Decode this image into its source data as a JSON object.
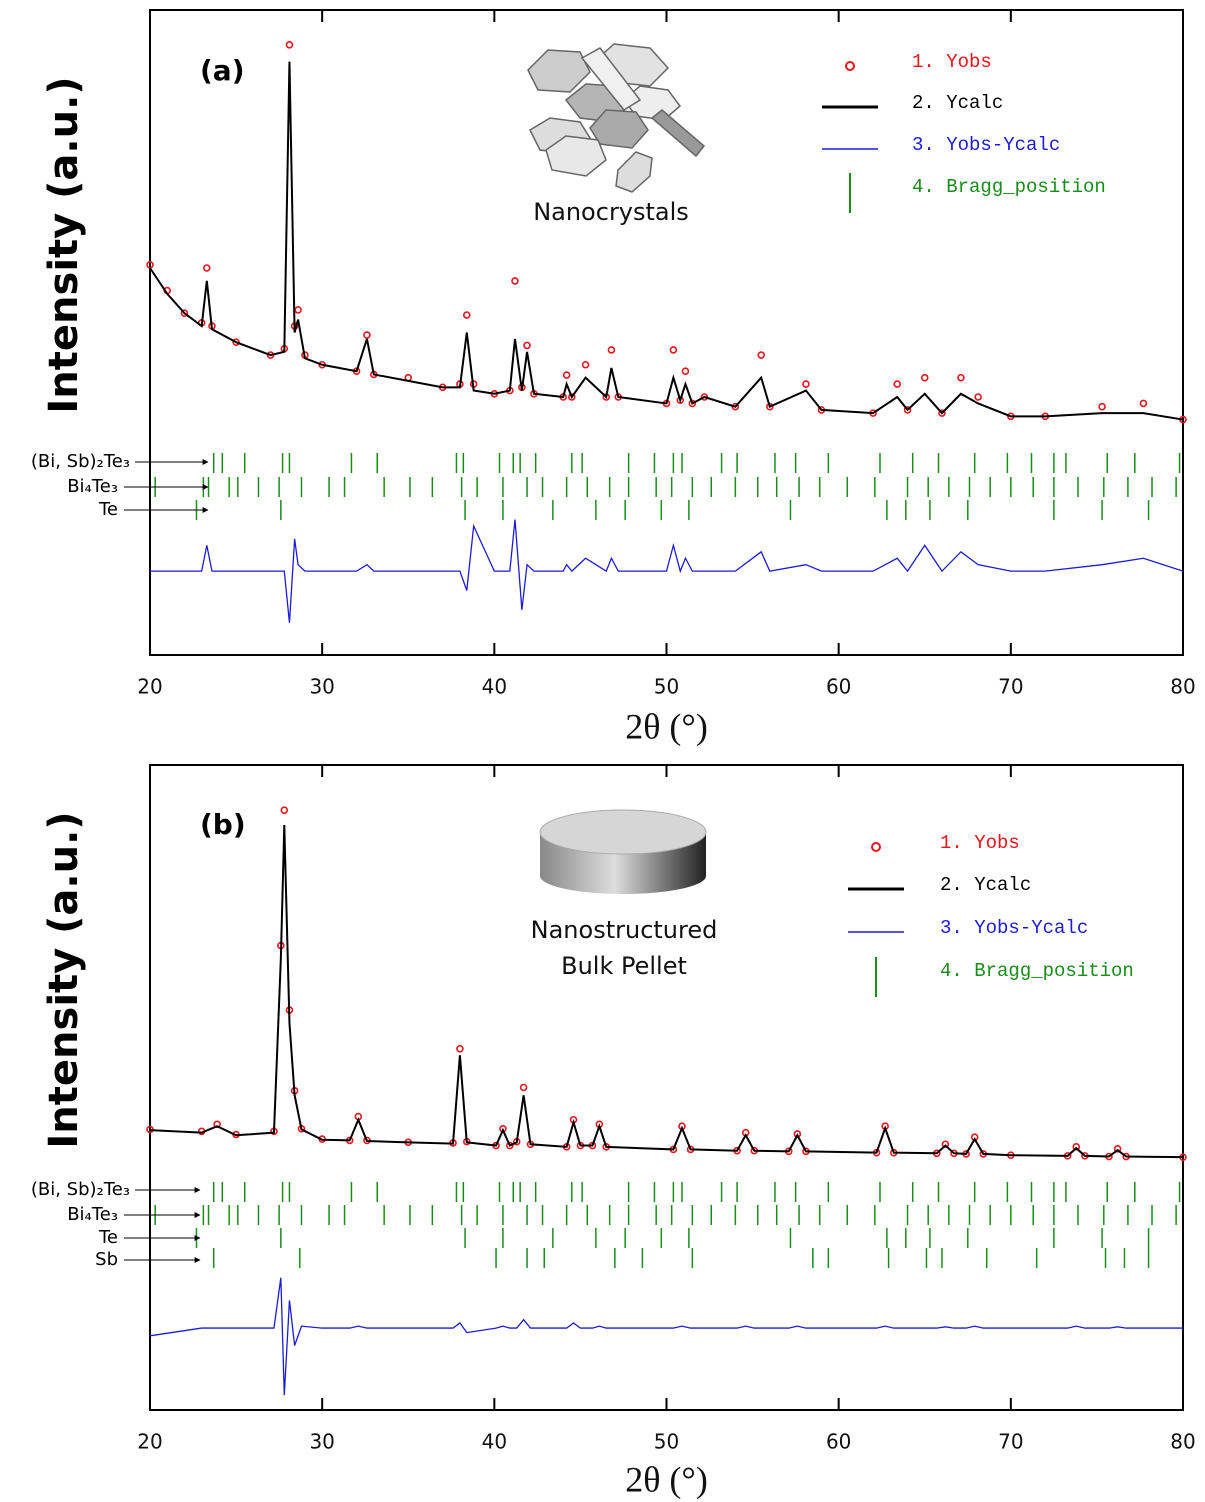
{
  "chart_data": [
    {
      "type": "line",
      "panel_label": "(a)",
      "inset_text": [
        "Nanocrystals"
      ],
      "x_label": "2θ (°)",
      "y_label": "Intensity (a.u.)",
      "xlim": [
        20,
        80
      ],
      "xticks": [
        20,
        30,
        40,
        50,
        60,
        70,
        80
      ],
      "ylim": [
        0,
        100
      ],
      "x": [
        20,
        21,
        22,
        23,
        23.3,
        23.6,
        25,
        27,
        27.8,
        28.1,
        28.4,
        28.6,
        29,
        30,
        32,
        32.6,
        33,
        35,
        37,
        38,
        38.4,
        38.8,
        40,
        40.9,
        41.2,
        41.6,
        41.9,
        42.3,
        44,
        44.2,
        44.5,
        45.3,
        46.5,
        46.8,
        47.2,
        50,
        50.4,
        50.8,
        51.1,
        51.5,
        52.2,
        54,
        55.5,
        56,
        58.1,
        59,
        62,
        63.4,
        64,
        65,
        66,
        67.1,
        68.1,
        70,
        72,
        75.3,
        77.7,
        80
      ],
      "series": [
        {
          "name": "1. Yobs",
          "color": "#e8141c",
          "marker": "circle",
          "values": [
            60.5,
            56.5,
            53,
            51.5,
            60,
            51,
            48.5,
            46.5,
            47.5,
            94.6,
            51,
            53.5,
            46.5,
            45,
            44,
            49.6,
            43.5,
            43,
            41.5,
            42,
            52.7,
            42,
            40.5,
            41,
            58,
            41.5,
            48,
            40.5,
            40,
            43.4,
            40,
            45,
            40,
            47.3,
            40,
            39,
            47.3,
            39.5,
            44,
            39,
            40,
            38.5,
            46.5,
            38.5,
            42,
            38,
            37.5,
            42,
            38,
            43,
            37.5,
            43,
            40,
            37,
            37,
            38.5,
            39,
            36.5
          ]
        },
        {
          "name": "2. Ycalc",
          "color": "#000000",
          "values": [
            60,
            56,
            53,
            51,
            58,
            50.5,
            48.5,
            46.5,
            47,
            92,
            50,
            52,
            46,
            45,
            44,
            49,
            43.5,
            42.5,
            41.5,
            41.5,
            50,
            41,
            40.5,
            41,
            49,
            41,
            47,
            40.5,
            40,
            42,
            40,
            43,
            40,
            44.5,
            40,
            39,
            43,
            39.5,
            42,
            39,
            40,
            38.5,
            43,
            38.5,
            41,
            38,
            37.5,
            40,
            38,
            40.5,
            37.5,
            40.5,
            39,
            37,
            37,
            37.5,
            37.5,
            36.5
          ]
        },
        {
          "name": "3. Yobs-Ycalc",
          "color": "#1c1cd6",
          "values": [
            13,
            13,
            13,
            13,
            17,
            13,
            13,
            13,
            13,
            5,
            18,
            14,
            13,
            13,
            13,
            14,
            13,
            13,
            13,
            13,
            10,
            20,
            13,
            13,
            21,
            7,
            14,
            13,
            13,
            14,
            13,
            15,
            13,
            15,
            13,
            13,
            17,
            13,
            15,
            13,
            13,
            13,
            16,
            13,
            14,
            13,
            13,
            15,
            13,
            17,
            13,
            16,
            14,
            13,
            13,
            14,
            15,
            13
          ]
        }
      ],
      "bragg": {
        "name": "4. Bragg_position",
        "color": "#1a8c1a",
        "phases": [
          {
            "name": "(Bi, Sb)₂Te₃",
            "positions": [
              23.7,
              24.2,
              25.5,
              27.7,
              28.1,
              31.7,
              33.2,
              37.8,
              38.2,
              40.3,
              41.1,
              41.5,
              42.4,
              44.5,
              45.1,
              47.8,
              49.3,
              50.4,
              50.9,
              53.2,
              54.1,
              56.3,
              57.5,
              59.4,
              62.4,
              64.3,
              65.8,
              67.9,
              69.8,
              71.2,
              72.5,
              73.2,
              75.6,
              77.2,
              79.8
            ]
          },
          {
            "name": "Bi₄Te₃",
            "positions": [
              20.3,
              23.1,
              23.4,
              24.6,
              25.1,
              26.3,
              27.5,
              28.8,
              30.4,
              31.3,
              33.6,
              35.1,
              36.4,
              38.1,
              39.0,
              40.5,
              41.9,
              42.8,
              44.2,
              45.4,
              46.7,
              47.8,
              49.4,
              50.3,
              51.5,
              52.6,
              54.0,
              55.3,
              56.4,
              57.7,
              58.9,
              60.5,
              62.1,
              64.0,
              65.2,
              66.4,
              67.6,
              68.8,
              70.0,
              71.3,
              72.5,
              73.9,
              75.4,
              76.8,
              78.2,
              79.6
            ]
          },
          {
            "name": "Te",
            "positions": [
              22.7,
              27.6,
              38.3,
              40.5,
              43.4,
              45.9,
              47.6,
              49.7,
              51.3,
              57.2,
              62.8,
              63.9,
              65.3,
              67.5,
              72.5,
              75.3,
              78.0
            ]
          }
        ]
      }
    },
    {
      "type": "line",
      "panel_label": "(b)",
      "inset_text": [
        "Nanostructured",
        "Bulk Pellet"
      ],
      "x_label": "2θ (°)",
      "y_label": "Intensity (a.u.)",
      "xlim": [
        20,
        80
      ],
      "xticks": [
        20,
        30,
        40,
        50,
        60,
        70,
        80
      ],
      "ylim": [
        0,
        100
      ],
      "x": [
        20,
        23,
        23.9,
        25,
        27.2,
        27.6,
        27.8,
        28.1,
        28.4,
        28.8,
        30,
        31.6,
        32.1,
        32.6,
        35,
        37.6,
        38,
        38.4,
        40.1,
        40.5,
        40.9,
        41.3,
        41.7,
        42.1,
        44.2,
        44.6,
        45,
        45.7,
        46.1,
        46.5,
        50.4,
        50.9,
        51.4,
        54.1,
        54.6,
        55.1,
        57.1,
        57.6,
        58.1,
        62.2,
        62.7,
        63.2,
        65.7,
        66.2,
        66.7,
        67.4,
        67.9,
        68.4,
        70,
        73.3,
        73.8,
        74.3,
        75.7,
        76.2,
        76.7,
        80
      ],
      "series": [
        {
          "name": "1. Yobs",
          "color": "#e8141c",
          "marker": "circle",
          "values": [
            43.5,
            43.2,
            44.3,
            42.7,
            43.2,
            72,
            93,
            62,
            49.5,
            43.6,
            42,
            41.8,
            45.5,
            41.8,
            41.5,
            41.4,
            56,
            41.6,
            41,
            43.6,
            41,
            41.6,
            50,
            41.2,
            40.8,
            45,
            41,
            41,
            44.3,
            40.8,
            40.4,
            44,
            40.4,
            40.2,
            43,
            40.2,
            40.1,
            42.8,
            40.1,
            39.9,
            44,
            39.9,
            39.8,
            41.2,
            39.8,
            39.7,
            42.3,
            39.7,
            39.5,
            39.4,
            40.8,
            39.4,
            39.3,
            40.5,
            39.3,
            39.2
          ]
        },
        {
          "name": "2. Ycalc",
          "color": "#000000",
          "values": [
            43.4,
            43,
            44,
            42.6,
            43,
            70,
            90.7,
            60,
            48.8,
            43.5,
            41.9,
            41.8,
            45,
            41.7,
            41.5,
            41.3,
            55,
            41.5,
            41,
            43.4,
            41,
            41.5,
            48.8,
            41.2,
            40.8,
            44.6,
            41,
            41,
            44,
            40.8,
            40.4,
            43.7,
            40.4,
            40.2,
            42.6,
            40.2,
            40.1,
            42.6,
            40.1,
            39.9,
            43.7,
            39.9,
            39.8,
            41,
            39.8,
            39.7,
            42,
            39.7,
            39.5,
            39.4,
            40.6,
            39.4,
            39.3,
            40.3,
            39.3,
            39.2
          ]
        },
        {
          "name": "3. Yobs-Ycalc",
          "color": "#1c1cd6",
          "values": [
            11.5,
            12.7,
            12.7,
            12.7,
            12.7,
            20.5,
            2.3,
            17,
            10,
            13,
            12.7,
            12.7,
            13,
            12.7,
            12.7,
            12.7,
            13.5,
            12,
            12.7,
            13,
            12.7,
            12.7,
            14,
            12.7,
            12.7,
            13.5,
            12.7,
            12.7,
            13,
            12.7,
            12.7,
            13,
            12.7,
            12.7,
            13,
            12.7,
            12.7,
            13,
            12.7,
            12.7,
            13,
            12.7,
            12.7,
            12.9,
            12.7,
            12.7,
            13,
            12.7,
            12.7,
            12.7,
            13,
            12.7,
            12.7,
            12.9,
            12.7,
            12.7
          ]
        }
      ],
      "bragg": {
        "name": "4. Bragg_position",
        "color": "#1a8c1a",
        "phases": [
          {
            "name": "(Bi, Sb)₂Te₃",
            "positions": [
              23.7,
              24.2,
              25.5,
              27.7,
              28.1,
              31.7,
              33.2,
              37.8,
              38.2,
              40.3,
              41.1,
              41.5,
              42.4,
              44.5,
              45.1,
              47.8,
              49.3,
              50.4,
              50.9,
              53.2,
              54.1,
              56.3,
              57.5,
              59.4,
              62.4,
              64.3,
              65.8,
              67.9,
              69.8,
              71.2,
              72.5,
              73.2,
              75.6,
              77.2,
              79.8
            ]
          },
          {
            "name": "Bi₄Te₃",
            "positions": [
              20.3,
              23.1,
              23.4,
              24.6,
              25.1,
              26.3,
              27.5,
              28.8,
              30.4,
              31.3,
              33.6,
              35.1,
              36.4,
              38.1,
              39.0,
              40.5,
              41.9,
              42.8,
              44.2,
              45.4,
              46.7,
              47.8,
              49.4,
              50.3,
              51.5,
              52.6,
              54.0,
              55.3,
              56.4,
              57.7,
              58.9,
              60.5,
              62.1,
              64.0,
              65.2,
              66.4,
              67.6,
              68.8,
              70.0,
              71.3,
              72.5,
              73.9,
              75.4,
              76.8,
              78.2,
              79.6
            ]
          },
          {
            "name": "Te",
            "positions": [
              22.7,
              27.6,
              38.3,
              40.5,
              43.4,
              45.9,
              47.6,
              49.7,
              51.3,
              57.2,
              62.8,
              63.9,
              65.3,
              67.5,
              72.5,
              75.3,
              78.0
            ]
          },
          {
            "name": "Sb",
            "positions": [
              23.7,
              28.7,
              40.1,
              41.9,
              42.9,
              47.0,
              48.6,
              51.5,
              58.5,
              59.4,
              62.9,
              65.1,
              66.0,
              68.6,
              71.5,
              75.5,
              76.6,
              78.0
            ]
          }
        ]
      }
    }
  ]
}
